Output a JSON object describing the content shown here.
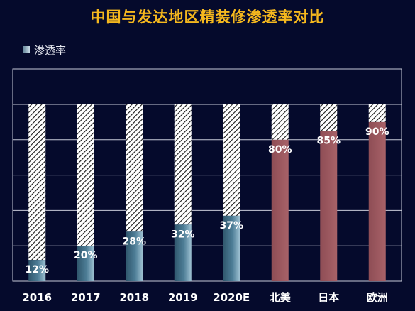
{
  "chart_data": {
    "type": "bar",
    "title": "中国与发达地区精装修渗透率对比",
    "categories": [
      "2016",
      "2017",
      "2018",
      "2019",
      "2020E",
      "北美",
      "日本",
      "欧洲"
    ],
    "series": [
      {
        "name": "渗透率",
        "values": [
          12,
          20,
          28,
          32,
          37,
          80,
          85,
          90
        ],
        "labels": [
          "12%",
          "20%",
          "28%",
          "32%",
          "37%",
          "80%",
          "85%",
          "90%"
        ]
      }
    ],
    "ylim": [
      0,
      100
    ],
    "grid": true,
    "legend": "top-left",
    "colors": {
      "china_bar": "#3d6a82",
      "developed_bar": "#a0575e",
      "remainder_hatch": "#ffffff",
      "title": "#f5b81e",
      "background": "#050a2c"
    }
  }
}
